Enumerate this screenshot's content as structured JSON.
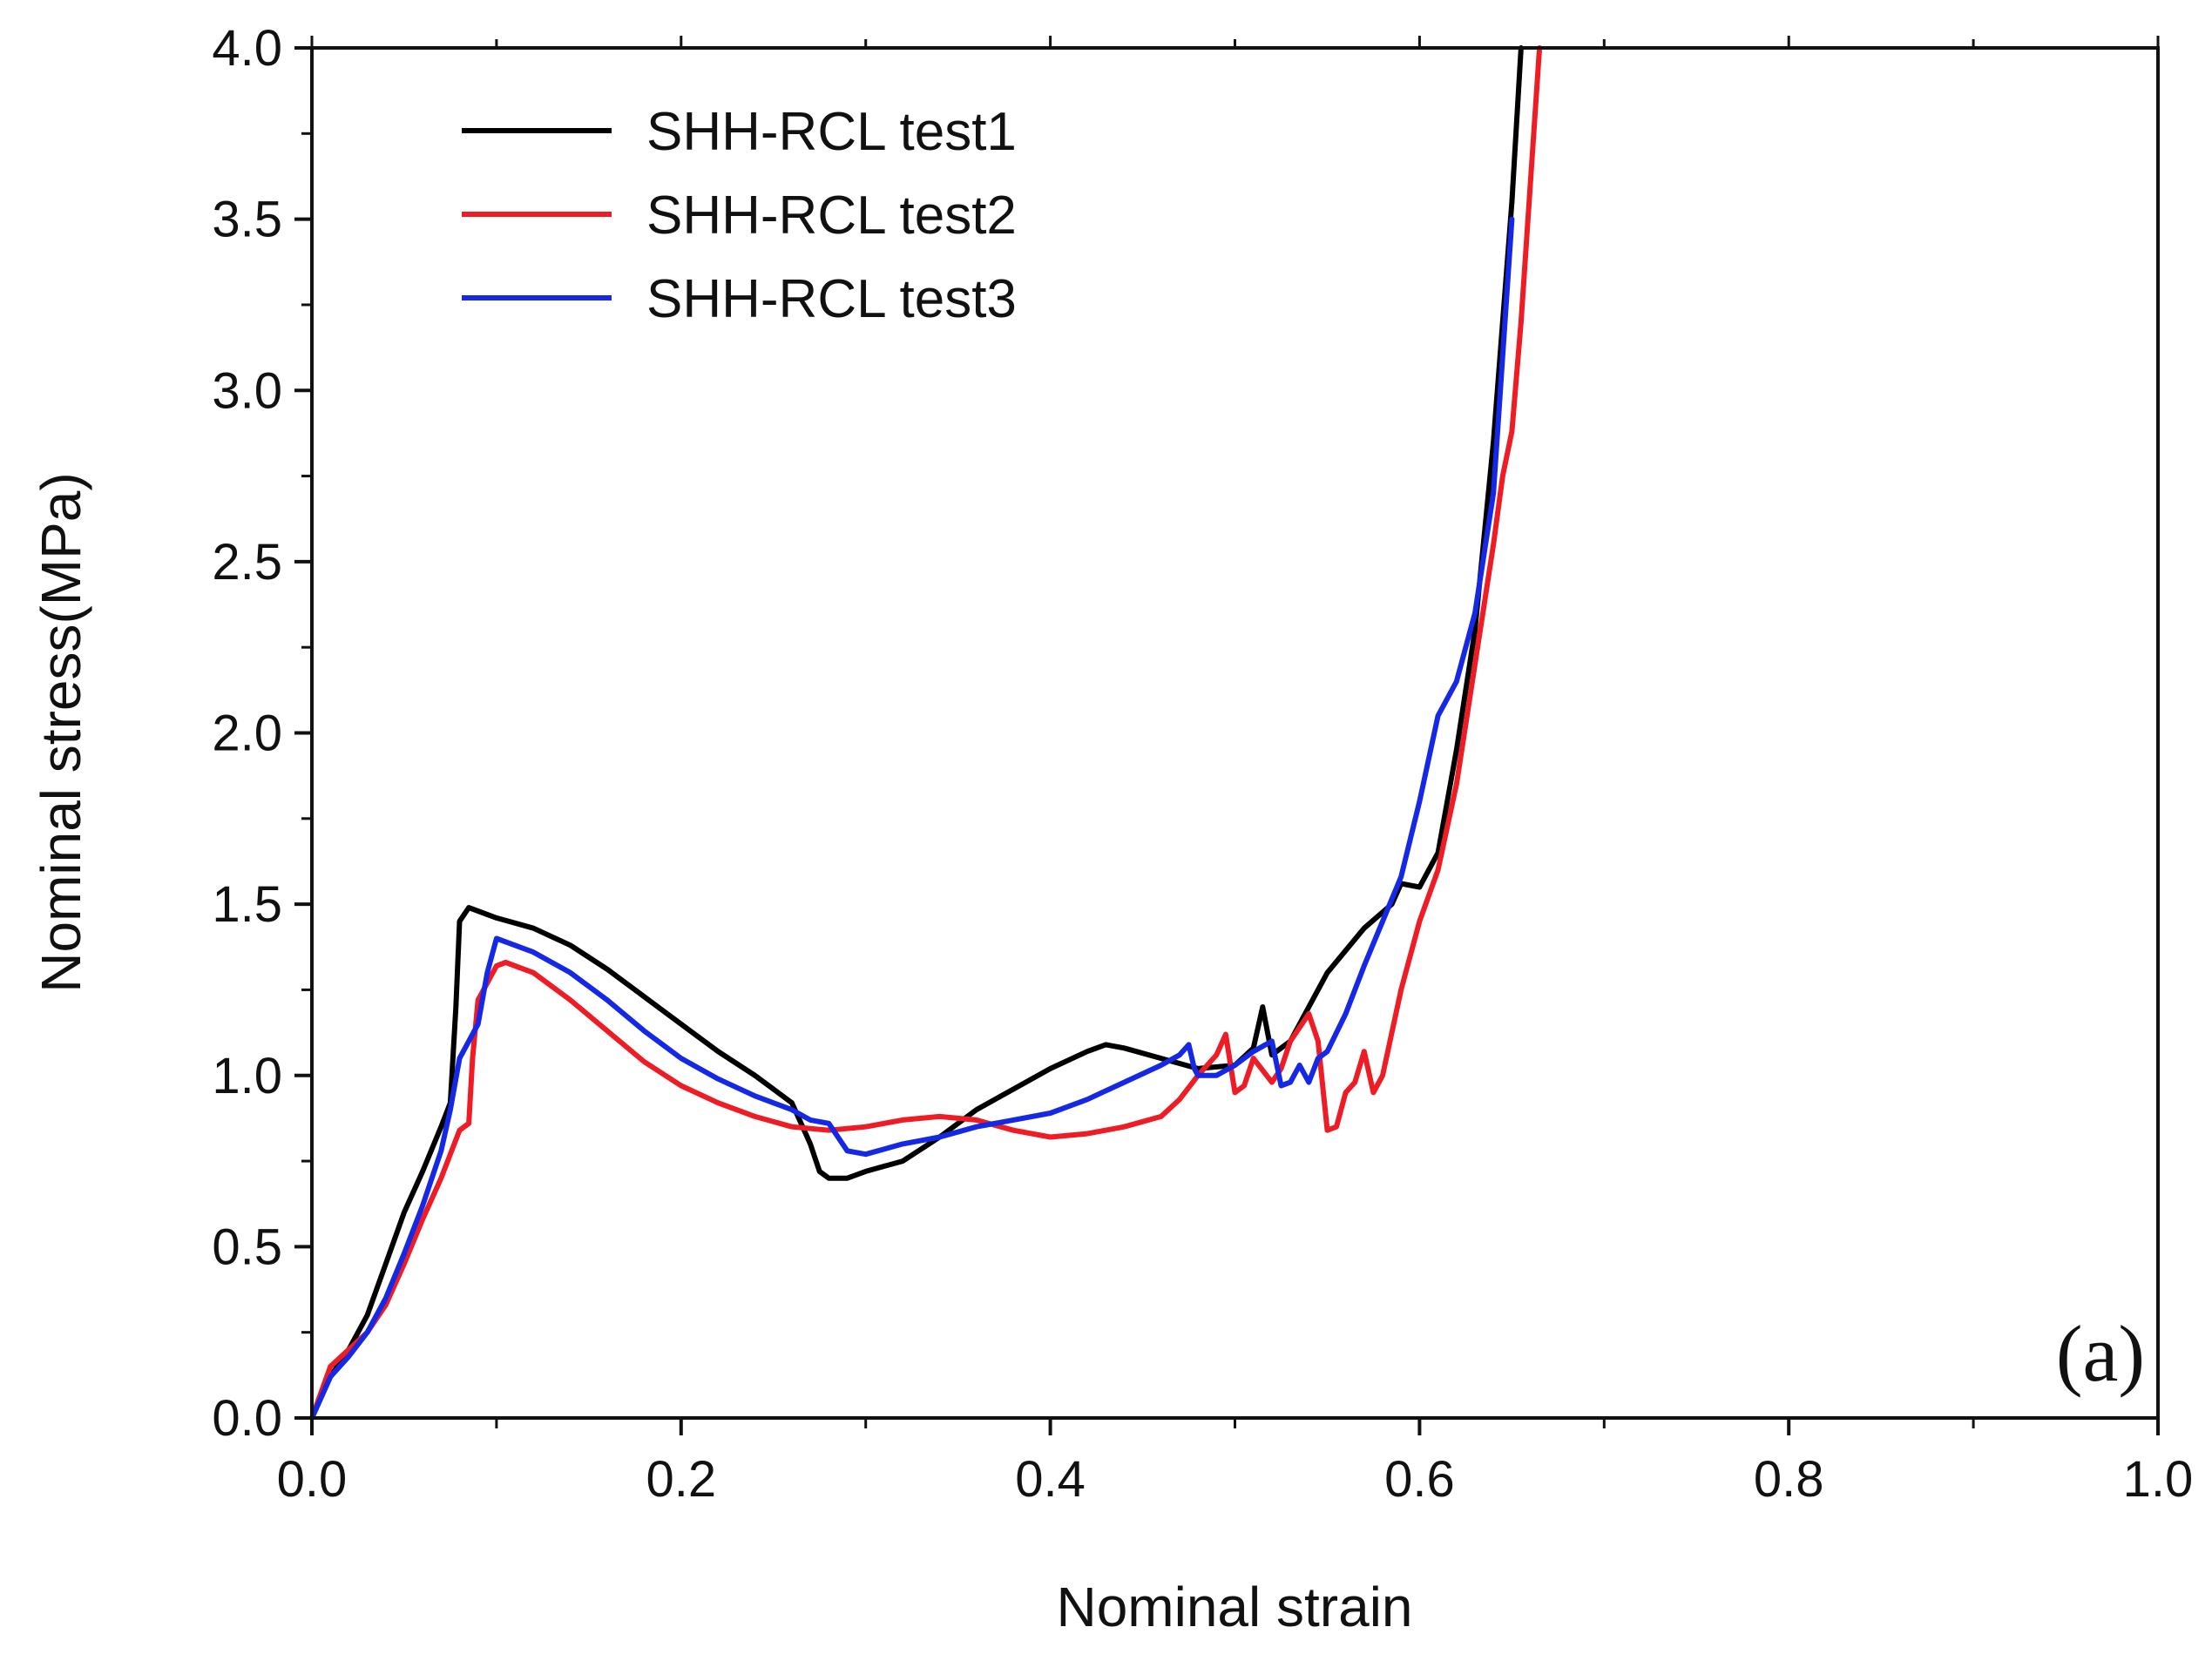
{
  "chart_data": {
    "type": "line",
    "title": "",
    "xlabel": "Nominal strain",
    "ylabel": "Nominal stress(MPa)",
    "xlim": [
      0.0,
      1.0
    ],
    "ylim": [
      0.0,
      4.0
    ],
    "x_ticks": [
      "0.0",
      "0.2",
      "0.4",
      "0.6",
      "0.8",
      "1.0"
    ],
    "y_ticks": [
      "0.0",
      "0.5",
      "1.0",
      "1.5",
      "2.0",
      "2.5",
      "3.0",
      "3.5",
      "4.0"
    ],
    "grid": false,
    "legend_position": "top-left",
    "panel_label": "(a)",
    "series": [
      {
        "name": "SHH-RCL test1",
        "color": "#000000",
        "points": [
          [
            0.0,
            0.0
          ],
          [
            0.01,
            0.12
          ],
          [
            0.02,
            0.2
          ],
          [
            0.03,
            0.3
          ],
          [
            0.04,
            0.45
          ],
          [
            0.05,
            0.6
          ],
          [
            0.06,
            0.72
          ],
          [
            0.07,
            0.85
          ],
          [
            0.075,
            0.92
          ],
          [
            0.078,
            1.2
          ],
          [
            0.08,
            1.45
          ],
          [
            0.085,
            1.49
          ],
          [
            0.09,
            1.48
          ],
          [
            0.1,
            1.46
          ],
          [
            0.12,
            1.43
          ],
          [
            0.14,
            1.38
          ],
          [
            0.16,
            1.31
          ],
          [
            0.18,
            1.23
          ],
          [
            0.2,
            1.15
          ],
          [
            0.22,
            1.07
          ],
          [
            0.24,
            1.0
          ],
          [
            0.26,
            0.92
          ],
          [
            0.27,
            0.8
          ],
          [
            0.275,
            0.72
          ],
          [
            0.28,
            0.7
          ],
          [
            0.29,
            0.7
          ],
          [
            0.3,
            0.72
          ],
          [
            0.32,
            0.75
          ],
          [
            0.34,
            0.82
          ],
          [
            0.36,
            0.9
          ],
          [
            0.38,
            0.96
          ],
          [
            0.4,
            1.02
          ],
          [
            0.42,
            1.07
          ],
          [
            0.43,
            1.09
          ],
          [
            0.44,
            1.08
          ],
          [
            0.46,
            1.05
          ],
          [
            0.48,
            1.02
          ],
          [
            0.5,
            1.03
          ],
          [
            0.51,
            1.08
          ],
          [
            0.515,
            1.2
          ],
          [
            0.52,
            1.06
          ],
          [
            0.53,
            1.1
          ],
          [
            0.55,
            1.3
          ],
          [
            0.57,
            1.43
          ],
          [
            0.585,
            1.5
          ],
          [
            0.59,
            1.56
          ],
          [
            0.6,
            1.55
          ],
          [
            0.61,
            1.65
          ],
          [
            0.62,
            1.95
          ],
          [
            0.63,
            2.3
          ],
          [
            0.64,
            2.85
          ],
          [
            0.65,
            3.55
          ],
          [
            0.655,
            4.0
          ]
        ]
      },
      {
        "name": "SHH-RCL test2",
        "color": "#ee1c25",
        "points": [
          [
            0.0,
            0.0
          ],
          [
            0.01,
            0.15
          ],
          [
            0.02,
            0.2
          ],
          [
            0.03,
            0.25
          ],
          [
            0.04,
            0.33
          ],
          [
            0.05,
            0.45
          ],
          [
            0.06,
            0.58
          ],
          [
            0.07,
            0.7
          ],
          [
            0.08,
            0.84
          ],
          [
            0.085,
            0.86
          ],
          [
            0.087,
            1.05
          ],
          [
            0.09,
            1.22
          ],
          [
            0.1,
            1.32
          ],
          [
            0.105,
            1.33
          ],
          [
            0.12,
            1.3
          ],
          [
            0.14,
            1.22
          ],
          [
            0.16,
            1.13
          ],
          [
            0.18,
            1.04
          ],
          [
            0.2,
            0.97
          ],
          [
            0.22,
            0.92
          ],
          [
            0.24,
            0.88
          ],
          [
            0.26,
            0.85
          ],
          [
            0.28,
            0.84
          ],
          [
            0.3,
            0.85
          ],
          [
            0.32,
            0.87
          ],
          [
            0.34,
            0.88
          ],
          [
            0.36,
            0.87
          ],
          [
            0.38,
            0.84
          ],
          [
            0.4,
            0.82
          ],
          [
            0.42,
            0.83
          ],
          [
            0.44,
            0.85
          ],
          [
            0.46,
            0.88
          ],
          [
            0.47,
            0.93
          ],
          [
            0.48,
            1.0
          ],
          [
            0.49,
            1.06
          ],
          [
            0.495,
            1.12
          ],
          [
            0.5,
            0.95
          ],
          [
            0.505,
            0.97
          ],
          [
            0.51,
            1.05
          ],
          [
            0.52,
            0.98
          ],
          [
            0.525,
            1.02
          ],
          [
            0.53,
            1.1
          ],
          [
            0.54,
            1.18
          ],
          [
            0.545,
            1.1
          ],
          [
            0.55,
            0.84
          ],
          [
            0.555,
            0.85
          ],
          [
            0.56,
            0.95
          ],
          [
            0.565,
            0.98
          ],
          [
            0.57,
            1.07
          ],
          [
            0.575,
            0.95
          ],
          [
            0.58,
            1.0
          ],
          [
            0.59,
            1.25
          ],
          [
            0.6,
            1.45
          ],
          [
            0.61,
            1.6
          ],
          [
            0.62,
            1.85
          ],
          [
            0.63,
            2.2
          ],
          [
            0.64,
            2.55
          ],
          [
            0.645,
            2.75
          ],
          [
            0.65,
            2.88
          ],
          [
            0.655,
            3.2
          ],
          [
            0.66,
            3.6
          ],
          [
            0.665,
            4.0
          ]
        ]
      },
      {
        "name": "SHH-RCL test3",
        "color": "#1428e6",
        "points": [
          [
            0.0,
            0.0
          ],
          [
            0.01,
            0.12
          ],
          [
            0.02,
            0.18
          ],
          [
            0.03,
            0.25
          ],
          [
            0.04,
            0.35
          ],
          [
            0.05,
            0.48
          ],
          [
            0.06,
            0.62
          ],
          [
            0.07,
            0.78
          ],
          [
            0.075,
            0.9
          ],
          [
            0.08,
            1.05
          ],
          [
            0.085,
            1.1
          ],
          [
            0.09,
            1.15
          ],
          [
            0.095,
            1.3
          ],
          [
            0.1,
            1.4
          ],
          [
            0.11,
            1.38
          ],
          [
            0.12,
            1.36
          ],
          [
            0.14,
            1.3
          ],
          [
            0.16,
            1.22
          ],
          [
            0.18,
            1.13
          ],
          [
            0.2,
            1.05
          ],
          [
            0.22,
            0.99
          ],
          [
            0.24,
            0.94
          ],
          [
            0.26,
            0.9
          ],
          [
            0.27,
            0.87
          ],
          [
            0.28,
            0.86
          ],
          [
            0.29,
            0.78
          ],
          [
            0.3,
            0.77
          ],
          [
            0.32,
            0.8
          ],
          [
            0.34,
            0.82
          ],
          [
            0.36,
            0.85
          ],
          [
            0.38,
            0.87
          ],
          [
            0.4,
            0.89
          ],
          [
            0.42,
            0.93
          ],
          [
            0.44,
            0.98
          ],
          [
            0.46,
            1.03
          ],
          [
            0.47,
            1.06
          ],
          [
            0.475,
            1.09
          ],
          [
            0.478,
            1.02
          ],
          [
            0.48,
            1.0
          ],
          [
            0.49,
            1.0
          ],
          [
            0.5,
            1.03
          ],
          [
            0.51,
            1.07
          ],
          [
            0.52,
            1.1
          ],
          [
            0.525,
            0.97
          ],
          [
            0.53,
            0.98
          ],
          [
            0.535,
            1.03
          ],
          [
            0.54,
            0.98
          ],
          [
            0.545,
            1.05
          ],
          [
            0.55,
            1.07
          ],
          [
            0.56,
            1.18
          ],
          [
            0.57,
            1.32
          ],
          [
            0.58,
            1.45
          ],
          [
            0.59,
            1.58
          ],
          [
            0.6,
            1.8
          ],
          [
            0.61,
            2.05
          ],
          [
            0.62,
            2.15
          ],
          [
            0.63,
            2.35
          ],
          [
            0.64,
            2.7
          ],
          [
            0.645,
            3.1
          ],
          [
            0.65,
            3.5
          ]
        ]
      }
    ]
  }
}
